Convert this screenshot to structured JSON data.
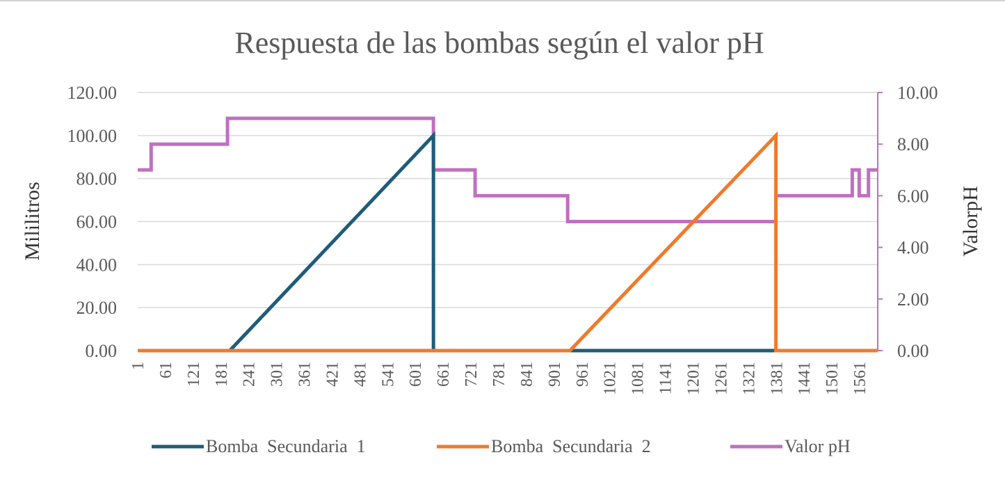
{
  "chart_data": {
    "type": "line",
    "title": "Respuesta de las bombas según el valor pH",
    "ylabel": "Mililitros",
    "y2label": "ValorpH",
    "xlim": [
      1,
      1600
    ],
    "ylim": [
      0,
      120
    ],
    "y2lim": [
      0,
      10
    ],
    "yticks": [
      "0.00",
      "20.00",
      "40.00",
      "60.00",
      "80.00",
      "100.00",
      "120.00"
    ],
    "y2ticks": [
      "0.00",
      "2.00",
      "4.00",
      "6.00",
      "8.00",
      "10.00"
    ],
    "xticks": [
      "1",
      "61",
      "121",
      "181",
      "241",
      "301",
      "361",
      "421",
      "481",
      "541",
      "601",
      "661",
      "721",
      "781",
      "841",
      "901",
      "961",
      "1021",
      "1081",
      "1141",
      "1201",
      "1261",
      "1321",
      "1381",
      "1441",
      "1501",
      "1561"
    ],
    "grid": true,
    "legend_position": "bottom",
    "series": [
      {
        "name": "Bomba  Secundaria  1",
        "axis": "left",
        "color": "#1f5c7a",
        "points": [
          [
            1,
            0
          ],
          [
            200,
            0
          ],
          [
            640,
            100
          ],
          [
            640,
            0
          ],
          [
            1380,
            0
          ]
        ]
      },
      {
        "name": "Bomba  Secundaria  2",
        "axis": "left",
        "color": "#f07a2a",
        "points": [
          [
            1,
            0
          ],
          [
            935,
            0
          ],
          [
            1380,
            100
          ],
          [
            1380,
            0
          ],
          [
            1600,
            0
          ]
        ]
      },
      {
        "name": "Valor pH",
        "axis": "right",
        "color": "#c070c0",
        "points": [
          [
            1,
            7
          ],
          [
            30,
            7
          ],
          [
            30,
            8
          ],
          [
            195,
            8
          ],
          [
            195,
            9
          ],
          [
            640,
            9
          ],
          [
            640,
            7
          ],
          [
            730,
            7
          ],
          [
            730,
            6
          ],
          [
            930,
            6
          ],
          [
            930,
            5
          ],
          [
            1380,
            5
          ],
          [
            1380,
            6
          ],
          [
            1545,
            6
          ],
          [
            1545,
            7
          ],
          [
            1560,
            7
          ],
          [
            1560,
            6
          ],
          [
            1580,
            6
          ],
          [
            1580,
            7
          ],
          [
            1600,
            7
          ]
        ]
      }
    ]
  }
}
